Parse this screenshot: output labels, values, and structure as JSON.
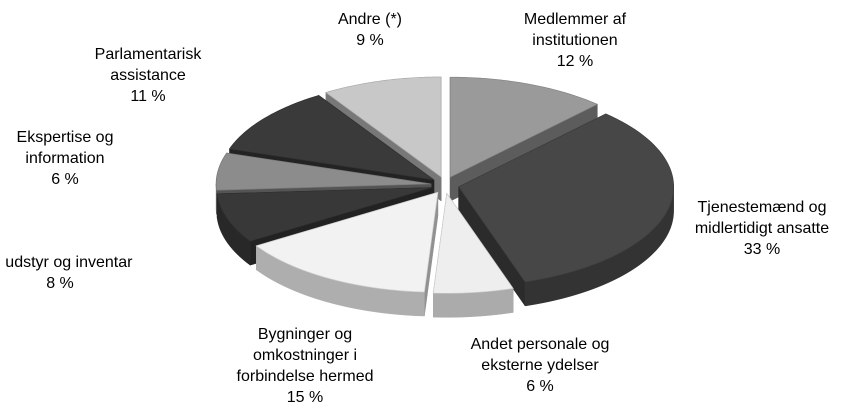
{
  "chart_data": {
    "type": "pie3d",
    "categories": [
      [
        "Medlemmer af",
        "institutionen"
      ],
      [
        "Tjenestemænd og",
        "midlertidigt ansatte"
      ],
      [
        "Andet personale og",
        "eksterne ydelser"
      ],
      [
        "Bygninger og",
        "omkostninger i",
        "forbindelse hermed"
      ],
      [
        "It, udstyr og inventar"
      ],
      [
        "Ekspertise og",
        "information"
      ],
      [
        "Parlamentarisk",
        "assistance"
      ],
      [
        "Andre (*)"
      ]
    ],
    "values": [
      12,
      33,
      6,
      15,
      8,
      6,
      11,
      9
    ],
    "value_labels": [
      "12 %",
      "33 %",
      "6 %",
      "15 %",
      "8 %",
      "6 %",
      "11 %",
      "9 %"
    ],
    "colors": [
      "#9a9a9a",
      "#474747",
      "#eeeeee",
      "#f2f2f2",
      "#383838",
      "#8c8c8c",
      "#3a3a3a",
      "#c8c8c8"
    ]
  }
}
